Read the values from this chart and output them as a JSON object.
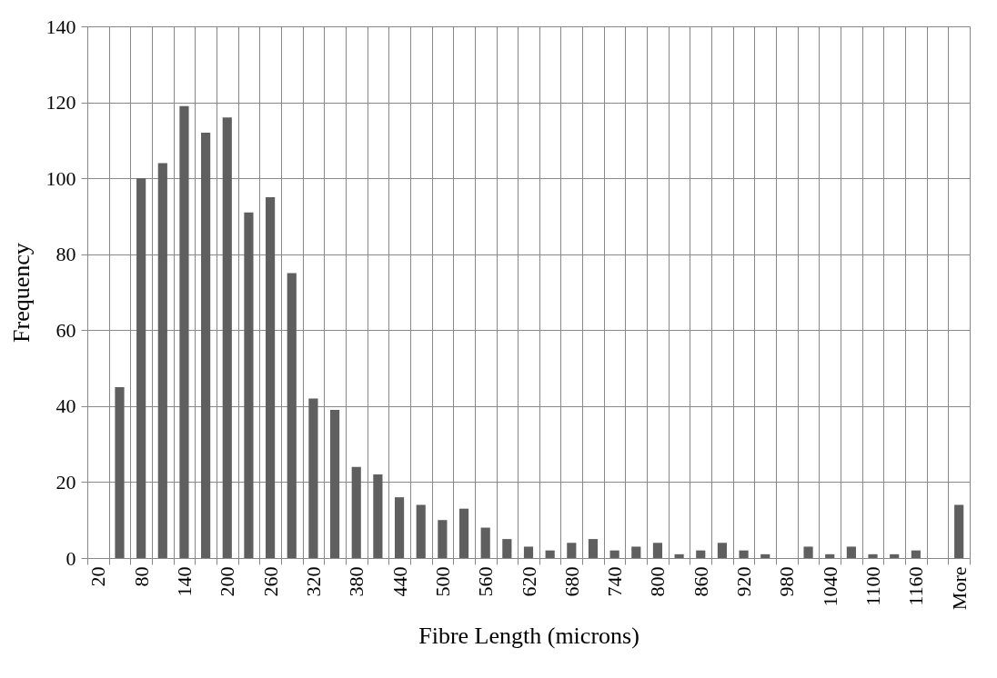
{
  "chart_data": {
    "type": "bar",
    "xlabel": "Fibre Length (microns)",
    "ylabel": "Frequency",
    "categories": [
      "20",
      null,
      "80",
      null,
      "140",
      null,
      "200",
      null,
      "260",
      null,
      "320",
      null,
      "380",
      null,
      "440",
      null,
      "500",
      null,
      "560",
      null,
      "620",
      null,
      "680",
      null,
      "740",
      null,
      "800",
      null,
      "860",
      null,
      "920",
      null,
      "980",
      null,
      "1040",
      null,
      "1100",
      null,
      "1160",
      null,
      "More"
    ],
    "values": [
      0,
      45,
      100,
      104,
      119,
      112,
      116,
      91,
      95,
      75,
      42,
      39,
      24,
      22,
      16,
      14,
      10,
      13,
      8,
      5,
      3,
      2,
      4,
      5,
      2,
      3,
      4,
      1,
      2,
      4,
      2,
      1,
      0,
      3,
      1,
      3,
      1,
      1,
      2,
      0,
      14
    ],
    "color": "#5f5f5f",
    "ylim": [
      0,
      140
    ],
    "yticks": [
      0,
      20,
      40,
      60,
      80,
      100,
      120,
      140
    ],
    "grid": true
  }
}
